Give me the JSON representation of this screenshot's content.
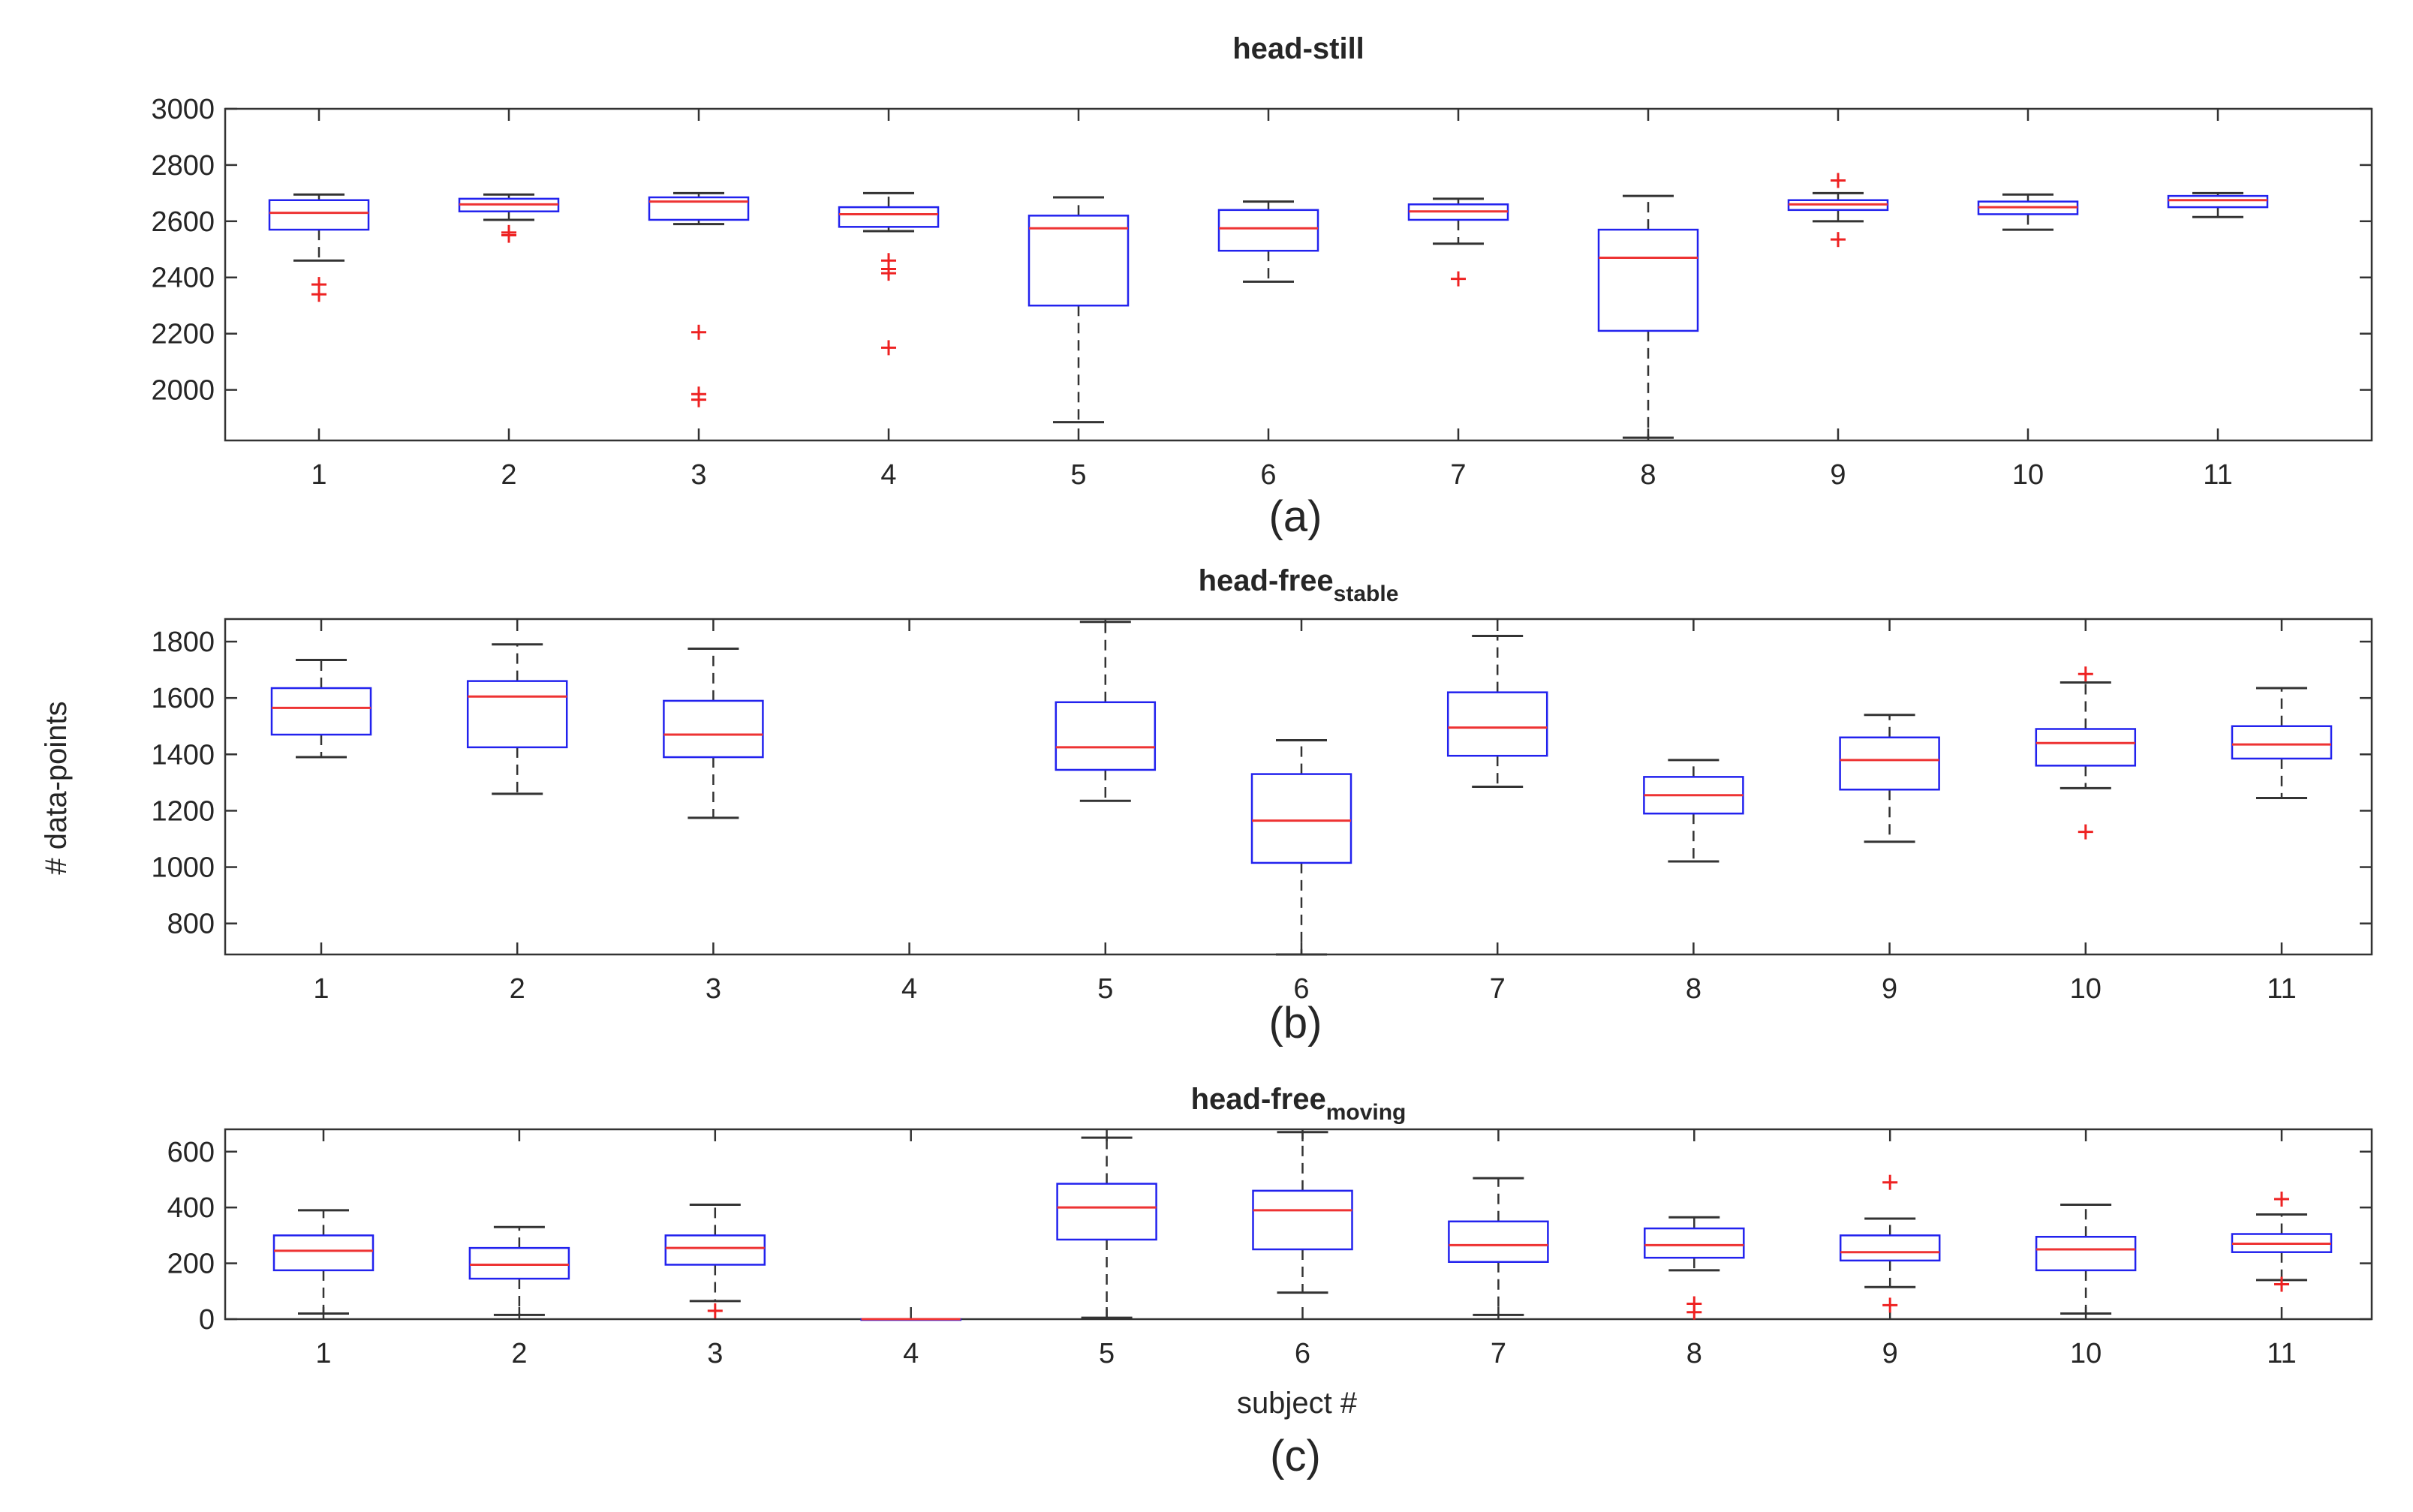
{
  "figure": {
    "ylabel": "# data-points",
    "xlabel": "subject #"
  },
  "chart_data": [
    {
      "type": "box",
      "panel_label": "(a)",
      "title": "head-still",
      "title_main": "head-still",
      "title_sub": "",
      "xlabel": "",
      "ylabel": "",
      "ylim": [
        1820,
        3000
      ],
      "yticks": [
        "2000",
        "2200",
        "2400",
        "2600",
        "2800",
        "3000"
      ],
      "categories": [
        "1",
        "2",
        "3",
        "4",
        "5",
        "6",
        "7",
        "8",
        "9",
        "10",
        "11"
      ],
      "boxes": [
        {
          "subject": "1",
          "whisker_low": 2460,
          "q1": 2570,
          "median": 2630,
          "q3": 2675,
          "whisker_high": 2695,
          "outliers": [
            2340,
            2375
          ]
        },
        {
          "subject": "2",
          "whisker_low": 2605,
          "q1": 2635,
          "median": 2660,
          "q3": 2680,
          "whisker_high": 2695,
          "outliers": [
            2550,
            2560
          ]
        },
        {
          "subject": "3",
          "whisker_low": 2590,
          "q1": 2605,
          "median": 2670,
          "q3": 2685,
          "whisker_high": 2700,
          "outliers": [
            1965,
            1985,
            2205
          ]
        },
        {
          "subject": "4",
          "whisker_low": 2565,
          "q1": 2580,
          "median": 2625,
          "q3": 2650,
          "whisker_high": 2700,
          "outliers": [
            2150,
            2415,
            2430,
            2460
          ]
        },
        {
          "subject": "5",
          "whisker_low": 1885,
          "q1": 2300,
          "median": 2575,
          "q3": 2620,
          "whisker_high": 2685,
          "outliers": []
        },
        {
          "subject": "6",
          "whisker_low": 2385,
          "q1": 2495,
          "median": 2575,
          "q3": 2640,
          "whisker_high": 2670,
          "outliers": []
        },
        {
          "subject": "7",
          "whisker_low": 2520,
          "q1": 2605,
          "median": 2635,
          "q3": 2660,
          "whisker_high": 2680,
          "outliers": [
            2395
          ]
        },
        {
          "subject": "8",
          "whisker_low": 1830,
          "q1": 2210,
          "median": 2470,
          "q3": 2570,
          "whisker_high": 2690,
          "outliers": []
        },
        {
          "subject": "9",
          "whisker_low": 2600,
          "q1": 2640,
          "median": 2660,
          "q3": 2675,
          "whisker_high": 2700,
          "outliers": [
            2535,
            2745
          ]
        },
        {
          "subject": "10",
          "whisker_low": 2570,
          "q1": 2625,
          "median": 2650,
          "q3": 2670,
          "whisker_high": 2695,
          "outliers": []
        },
        {
          "subject": "11",
          "whisker_low": 2615,
          "q1": 2650,
          "median": 2675,
          "q3": 2690,
          "whisker_high": 2700,
          "outliers": []
        }
      ]
    },
    {
      "type": "box",
      "panel_label": "(b)",
      "title": "head-free stable",
      "title_main": "head-free",
      "title_sub": "stable",
      "xlabel": "",
      "ylabel": "# data-points",
      "ylim": [
        690,
        1880
      ],
      "yticks": [
        "800",
        "1000",
        "1200",
        "1400",
        "1600",
        "1800"
      ],
      "categories": [
        "1",
        "2",
        "3",
        "4",
        "5",
        "6",
        "7",
        "8",
        "9",
        "10",
        "11"
      ],
      "boxes": [
        {
          "subject": "1",
          "whisker_low": 1390,
          "q1": 1470,
          "median": 1565,
          "q3": 1635,
          "whisker_high": 1735,
          "outliers": []
        },
        {
          "subject": "2",
          "whisker_low": 1260,
          "q1": 1425,
          "median": 1605,
          "q3": 1660,
          "whisker_high": 1790,
          "outliers": []
        },
        {
          "subject": "3",
          "whisker_low": 1175,
          "q1": 1390,
          "median": 1470,
          "q3": 1590,
          "whisker_high": 1775,
          "outliers": []
        },
        {
          "subject": "4",
          "whisker_low": null,
          "q1": null,
          "median": null,
          "q3": null,
          "whisker_high": null,
          "outliers": []
        },
        {
          "subject": "5",
          "whisker_low": 1235,
          "q1": 1345,
          "median": 1425,
          "q3": 1585,
          "whisker_high": 1870,
          "outliers": []
        },
        {
          "subject": "6",
          "whisker_low": 690,
          "q1": 1015,
          "median": 1165,
          "q3": 1330,
          "whisker_high": 1450,
          "outliers": []
        },
        {
          "subject": "7",
          "whisker_low": 1285,
          "q1": 1395,
          "median": 1495,
          "q3": 1620,
          "whisker_high": 1820,
          "outliers": []
        },
        {
          "subject": "8",
          "whisker_low": 1020,
          "q1": 1190,
          "median": 1255,
          "q3": 1320,
          "whisker_high": 1380,
          "outliers": []
        },
        {
          "subject": "9",
          "whisker_low": 1090,
          "q1": 1275,
          "median": 1380,
          "q3": 1460,
          "whisker_high": 1540,
          "outliers": []
        },
        {
          "subject": "10",
          "whisker_low": 1280,
          "q1": 1360,
          "median": 1440,
          "q3": 1490,
          "whisker_high": 1655,
          "outliers": [
            1125,
            1685
          ]
        },
        {
          "subject": "11",
          "whisker_low": 1245,
          "q1": 1385,
          "median": 1435,
          "q3": 1500,
          "whisker_high": 1635,
          "outliers": []
        }
      ]
    },
    {
      "type": "box",
      "panel_label": "(c)",
      "title": "head-free moving",
      "title_main": "head-free",
      "title_sub": "moving",
      "xlabel": "subject #",
      "ylabel": "",
      "ylim": [
        0,
        680
      ],
      "yticks": [
        "0",
        "200",
        "400",
        "600"
      ],
      "categories": [
        "1",
        "2",
        "3",
        "4",
        "5",
        "6",
        "7",
        "8",
        "9",
        "10",
        "11"
      ],
      "boxes": [
        {
          "subject": "1",
          "whisker_low": 20,
          "q1": 175,
          "median": 245,
          "q3": 300,
          "whisker_high": 390,
          "outliers": []
        },
        {
          "subject": "2",
          "whisker_low": 15,
          "q1": 145,
          "median": 195,
          "q3": 255,
          "whisker_high": 330,
          "outliers": []
        },
        {
          "subject": "3",
          "whisker_low": 65,
          "q1": 195,
          "median": 255,
          "q3": 300,
          "whisker_high": 410,
          "outliers": [
            30
          ]
        },
        {
          "subject": "4",
          "whisker_low": 0,
          "q1": 0,
          "median": 0,
          "q3": 0,
          "whisker_high": 0,
          "outliers": []
        },
        {
          "subject": "5",
          "whisker_low": 5,
          "q1": 285,
          "median": 400,
          "q3": 485,
          "whisker_high": 650,
          "outliers": []
        },
        {
          "subject": "6",
          "whisker_low": 95,
          "q1": 250,
          "median": 390,
          "q3": 460,
          "whisker_high": 670,
          "outliers": []
        },
        {
          "subject": "7",
          "whisker_low": 15,
          "q1": 205,
          "median": 265,
          "q3": 350,
          "whisker_high": 505,
          "outliers": []
        },
        {
          "subject": "8",
          "whisker_low": 175,
          "q1": 220,
          "median": 265,
          "q3": 325,
          "whisker_high": 365,
          "outliers": [
            25,
            55
          ]
        },
        {
          "subject": "9",
          "whisker_low": 115,
          "q1": 210,
          "median": 240,
          "q3": 300,
          "whisker_high": 360,
          "outliers": [
            50,
            490
          ]
        },
        {
          "subject": "10",
          "whisker_low": 20,
          "q1": 175,
          "median": 250,
          "q3": 295,
          "whisker_high": 410,
          "outliers": []
        },
        {
          "subject": "11",
          "whisker_low": 140,
          "q1": 240,
          "median": 270,
          "q3": 305,
          "whisker_high": 375,
          "outliers": [
            125,
            430
          ]
        }
      ]
    }
  ],
  "colors": {
    "box": "#2222ee",
    "median": "#ee3333",
    "outlier": "#ee2222",
    "whisker": "#333333",
    "axis": "#333333",
    "grid": "#e6e6e6"
  }
}
